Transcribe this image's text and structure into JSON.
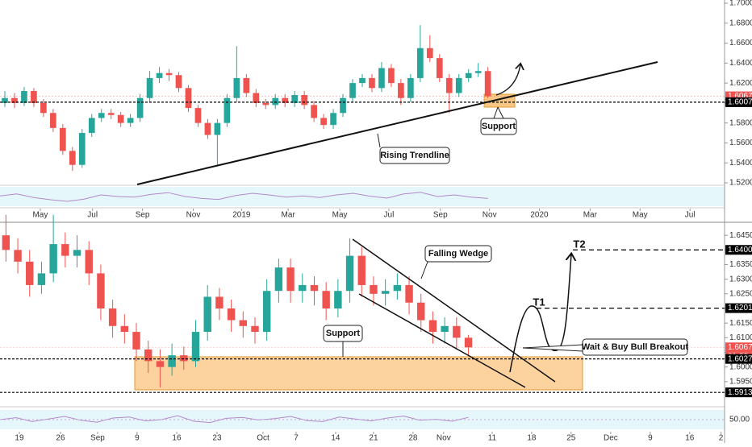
{
  "chart_data": [
    {
      "type": "candlestick",
      "up_color": "#26a69a",
      "down_color": "#ef5350",
      "xlim": [
        0,
        75
      ],
      "xticks": [
        {
          "value": 4.17,
          "label": "May"
        },
        {
          "value": 9.58,
          "label": "Jul"
        },
        {
          "value": 14.75,
          "label": "Sep"
        },
        {
          "value": 20,
          "label": "Nov"
        },
        {
          "value": 25,
          "label": "2019"
        },
        {
          "value": 29.83,
          "label": "Mar"
        },
        {
          "value": 35.17,
          "label": "May"
        },
        {
          "value": 40.25,
          "label": "Jul"
        },
        {
          "value": 45.58,
          "label": "Sep"
        },
        {
          "value": 50.67,
          "label": "Nov"
        },
        {
          "value": 55.83,
          "label": "2020"
        },
        {
          "value": 61.08,
          "label": "Mar"
        },
        {
          "value": 66.25,
          "label": "May"
        },
        {
          "value": 71.42,
          "label": "Jul"
        }
      ],
      "ylim": [
        1.52,
        1.7
      ],
      "yticks": [
        {
          "value": 1.52,
          "label": "1.52000"
        },
        {
          "value": 1.54,
          "label": "1.54000"
        },
        {
          "value": 1.56,
          "label": "1.56000"
        },
        {
          "value": 1.58,
          "label": "1.58000"
        },
        {
          "value": 1.6,
          "label": "1.60000"
        },
        {
          "value": 1.62,
          "label": "1.62000"
        },
        {
          "value": 1.64,
          "label": "1.64000"
        },
        {
          "value": 1.66,
          "label": "1.66000"
        },
        {
          "value": 1.68,
          "label": "1.68000"
        },
        {
          "value": 1.7,
          "label": "1.70000"
        }
      ],
      "ohlc": [
        [
          1.6,
          1.612,
          1.596,
          1.605
        ],
        [
          1.605,
          1.61,
          1.595,
          1.6
        ],
        [
          1.6,
          1.616,
          1.597,
          1.612
        ],
        [
          1.612,
          1.615,
          1.596,
          1.6
        ],
        [
          1.6,
          1.604,
          1.586,
          1.59
        ],
        [
          1.59,
          1.594,
          1.571,
          1.575
        ],
        [
          1.575,
          1.579,
          1.548,
          1.552
        ],
        [
          1.552,
          1.556,
          1.532,
          1.538
        ],
        [
          1.538,
          1.574,
          1.535,
          1.57
        ],
        [
          1.57,
          1.589,
          1.566,
          1.585
        ],
        [
          1.585,
          1.594,
          1.581,
          1.59
        ],
        [
          1.59,
          1.594,
          1.584,
          1.588
        ],
        [
          1.588,
          1.591,
          1.576,
          1.58
        ],
        [
          1.58,
          1.589,
          1.576,
          1.585
        ],
        [
          1.585,
          1.609,
          1.581,
          1.605
        ],
        [
          1.605,
          1.632,
          1.601,
          1.625
        ],
        [
          1.625,
          1.636,
          1.62,
          1.63
        ],
        [
          1.63,
          1.634,
          1.622,
          1.628
        ],
        [
          1.628,
          1.631,
          1.611,
          1.615
        ],
        [
          1.615,
          1.618,
          1.591,
          1.595
        ],
        [
          1.595,
          1.598,
          1.576,
          1.58
        ],
        [
          1.58,
          1.584,
          1.564,
          1.568
        ],
        [
          1.568,
          1.584,
          1.538,
          1.58
        ],
        [
          1.58,
          1.609,
          1.576,
          1.605
        ],
        [
          1.605,
          1.657,
          1.601,
          1.625
        ],
        [
          1.625,
          1.629,
          1.606,
          1.61
        ],
        [
          1.61,
          1.614,
          1.596,
          1.6
        ],
        [
          1.6,
          1.604,
          1.594,
          1.598
        ],
        [
          1.598,
          1.609,
          1.594,
          1.605
        ],
        [
          1.605,
          1.609,
          1.596,
          1.6
        ],
        [
          1.6,
          1.612,
          1.596,
          1.608
        ],
        [
          1.608,
          1.612,
          1.594,
          1.598
        ],
        [
          1.598,
          1.602,
          1.581,
          1.585
        ],
        [
          1.585,
          1.589,
          1.574,
          1.578
        ],
        [
          1.578,
          1.594,
          1.574,
          1.59
        ],
        [
          1.59,
          1.609,
          1.586,
          1.605
        ],
        [
          1.605,
          1.624,
          1.601,
          1.62
        ],
        [
          1.62,
          1.629,
          1.616,
          1.625
        ],
        [
          1.625,
          1.629,
          1.611,
          1.615
        ],
        [
          1.615,
          1.641,
          1.611,
          1.635
        ],
        [
          1.635,
          1.639,
          1.616,
          1.62
        ],
        [
          1.62,
          1.624,
          1.598,
          1.605
        ],
        [
          1.605,
          1.629,
          1.601,
          1.625
        ],
        [
          1.625,
          1.678,
          1.621,
          1.655
        ],
        [
          1.655,
          1.668,
          1.641,
          1.645
        ],
        [
          1.645,
          1.649,
          1.621,
          1.625
        ],
        [
          1.625,
          1.629,
          1.59,
          1.61
        ],
        [
          1.61,
          1.629,
          1.606,
          1.625
        ],
        [
          1.625,
          1.634,
          1.621,
          1.63
        ],
        [
          1.63,
          1.64,
          1.626,
          1.632
        ],
        [
          1.632,
          1.636,
          1.605,
          1.6067
        ]
      ],
      "levels": [
        {
          "price": 1.60672,
          "color": "#ef5350"
        },
        {
          "price": 1.60079,
          "color": "#000000"
        }
      ],
      "rsi": {
        "ylim": [
          20,
          80
        ],
        "color": "#b388c9",
        "values": [
          52,
          58,
          47,
          40,
          35,
          42,
          55,
          50,
          48,
          57,
          62,
          50,
          44,
          41,
          53,
          60,
          55,
          48,
          52,
          47,
          55,
          60,
          51,
          45,
          58,
          63,
          50,
          55,
          48,
          44
        ]
      },
      "annotations": [
        "Rising Trendline",
        "Support"
      ]
    },
    {
      "type": "candlestick",
      "up_color": "#26a69a",
      "down_color": "#ef5350",
      "xlim": [
        0,
        61.1
      ],
      "xticks": [
        {
          "value": 1.63,
          "label": "19"
        },
        {
          "value": 5.1,
          "label": "26"
        },
        {
          "value": 8.23,
          "label": "Sep"
        },
        {
          "value": 11.56,
          "label": "9"
        },
        {
          "value": 14.9,
          "label": "16"
        },
        {
          "value": 18.3,
          "label": "23"
        },
        {
          "value": 22.18,
          "label": "Oct"
        },
        {
          "value": 24.97,
          "label": "7"
        },
        {
          "value": 28.3,
          "label": "14"
        },
        {
          "value": 31.5,
          "label": "21"
        },
        {
          "value": 34.83,
          "label": "28"
        },
        {
          "value": 37.41,
          "label": "Nov"
        },
        {
          "value": 41.5,
          "label": "11"
        },
        {
          "value": 44.83,
          "label": "18"
        },
        {
          "value": 48.16,
          "label": "25"
        },
        {
          "value": 51.5,
          "label": "Dec"
        },
        {
          "value": 54.83,
          "label": "9"
        },
        {
          "value": 58.16,
          "label": "16"
        },
        {
          "value": 60.8,
          "label": "2"
        }
      ],
      "ylim": [
        1.59,
        1.65
      ],
      "yticks": [
        {
          "value": 1.595,
          "label": "1.59500"
        },
        {
          "value": 1.6,
          "label": "1.60000"
        },
        {
          "value": 1.605,
          "label": "1.60500"
        },
        {
          "value": 1.61,
          "label": "1.61000"
        },
        {
          "value": 1.615,
          "label": "1.61500"
        },
        {
          "value": 1.62,
          "label": "1.62000"
        },
        {
          "value": 1.625,
          "label": "1.62500"
        },
        {
          "value": 1.63,
          "label": "1.63000"
        },
        {
          "value": 1.635,
          "label": "1.63500"
        },
        {
          "value": 1.64,
          "label": "1.64000"
        },
        {
          "value": 1.645,
          "label": "1.64500"
        }
      ],
      "ohlc": [
        [
          1.645,
          1.652,
          1.636,
          1.64
        ],
        [
          1.64,
          1.644,
          1.632,
          1.636
        ],
        [
          1.636,
          1.64,
          1.624,
          1.628
        ],
        [
          1.628,
          1.636,
          1.625,
          1.632
        ],
        [
          1.632,
          1.652,
          1.629,
          1.642
        ],
        [
          1.642,
          1.646,
          1.634,
          1.638
        ],
        [
          1.638,
          1.645,
          1.634,
          1.64
        ],
        [
          1.64,
          1.643,
          1.628,
          1.632
        ],
        [
          1.632,
          1.635,
          1.616,
          1.62
        ],
        [
          1.62,
          1.623,
          1.61,
          1.614
        ],
        [
          1.614,
          1.618,
          1.608,
          1.612
        ],
        [
          1.612,
          1.615,
          1.602,
          1.606
        ],
        [
          1.606,
          1.609,
          1.598,
          1.602
        ],
        [
          1.602,
          1.606,
          1.593,
          1.6
        ],
        [
          1.6,
          1.608,
          1.597,
          1.604
        ],
        [
          1.604,
          1.607,
          1.599,
          1.602
        ],
        [
          1.602,
          1.616,
          1.6,
          1.612
        ],
        [
          1.612,
          1.628,
          1.609,
          1.624
        ],
        [
          1.624,
          1.627,
          1.616,
          1.62
        ],
        [
          1.62,
          1.623,
          1.612,
          1.616
        ],
        [
          1.616,
          1.619,
          1.61,
          1.614
        ],
        [
          1.614,
          1.617,
          1.608,
          1.612
        ],
        [
          1.612,
          1.63,
          1.609,
          1.626
        ],
        [
          1.626,
          1.637,
          1.622,
          1.634
        ],
        [
          1.634,
          1.637,
          1.622,
          1.626
        ],
        [
          1.626,
          1.632,
          1.622,
          1.628
        ],
        [
          1.628,
          1.631,
          1.621,
          1.626
        ],
        [
          1.626,
          1.629,
          1.616,
          1.62
        ],
        [
          1.62,
          1.63,
          1.617,
          1.626
        ],
        [
          1.626,
          1.644,
          1.622,
          1.638
        ],
        [
          1.638,
          1.641,
          1.624,
          1.628
        ],
        [
          1.628,
          1.631,
          1.621,
          1.625
        ],
        [
          1.625,
          1.63,
          1.621,
          1.626
        ],
        [
          1.626,
          1.632,
          1.623,
          1.628
        ],
        [
          1.628,
          1.631,
          1.618,
          1.622
        ],
        [
          1.622,
          1.625,
          1.612,
          1.616
        ],
        [
          1.616,
          1.619,
          1.608,
          1.612
        ],
        [
          1.612,
          1.617,
          1.608,
          1.614
        ],
        [
          1.614,
          1.617,
          1.606,
          1.61
        ],
        [
          1.61,
          1.611,
          1.604,
          1.6067
        ]
      ],
      "levels": [
        {
          "price": 1.64002,
          "color": "#000000"
        },
        {
          "price": 1.62011,
          "color": "#000000"
        },
        {
          "price": 1.60672,
          "color": "#ef5350"
        },
        {
          "price": 1.60276,
          "color": "#000000"
        },
        {
          "price": 1.59133,
          "color": "#000000"
        }
      ],
      "countdown": "01:30:49",
      "rsi": {
        "ylim": [
          20,
          80
        ],
        "color": "#b388c9",
        "yticks": [
          {
            "value": 50,
            "label": "50.00"
          }
        ],
        "values": [
          50,
          56,
          44,
          52,
          60,
          48,
          42,
          55,
          58,
          46,
          50,
          62,
          45,
          41,
          54,
          57,
          49,
          53,
          60,
          47,
          44,
          58,
          52,
          46,
          55,
          61,
          48,
          51,
          45,
          57
        ]
      },
      "annotations": [
        "Falling Wedge",
        "Support",
        "T1",
        "T2",
        "Wait & Buy Bull Breakout"
      ]
    }
  ]
}
